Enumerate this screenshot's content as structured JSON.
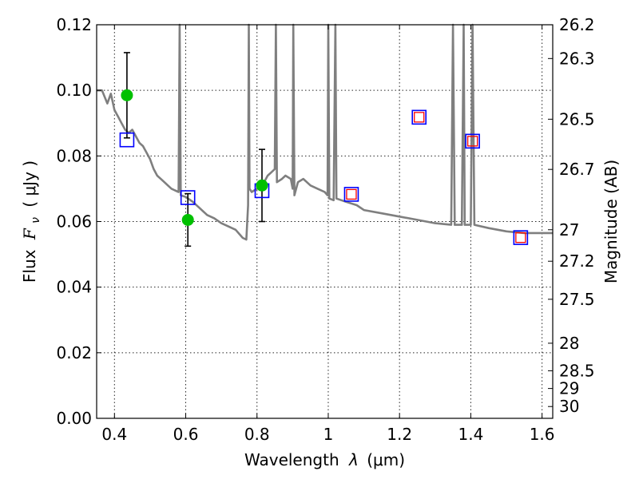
{
  "chart_data": {
    "type": "scatter",
    "xlabel_prefix": "Wavelength",
    "xlabel_symbol": "λ",
    "xlabel_unit": "(μm)",
    "ylabel_prefix": "Flux",
    "ylabel_symbol": "F",
    "ylabel_sub": "ν",
    "ylabel_unit": "( μJy )",
    "y2label": "Magnitude (AB)",
    "xlim": [
      0.35,
      1.63
    ],
    "ylim": [
      0.0,
      0.12
    ],
    "grid": true,
    "x_ticks": [
      0.4,
      0.6,
      0.8,
      1.0,
      1.2,
      1.4,
      1.6
    ],
    "x_tick_labels": [
      "0.4",
      "0.6",
      "0.8",
      "1",
      "1.2",
      "1.4",
      "1.6"
    ],
    "y_ticks": [
      0.0,
      0.02,
      0.04,
      0.06,
      0.08,
      0.1,
      0.12
    ],
    "y_tick_labels": [
      "0.00",
      "0.02",
      "0.04",
      "0.06",
      "0.08",
      "0.10",
      "0.12"
    ],
    "y2_ticks": [
      {
        "label": "26.2",
        "flux": 0.12
      },
      {
        "label": "26.3",
        "flux": 0.1097
      },
      {
        "label": "26.5",
        "flux": 0.0912
      },
      {
        "label": "26.7",
        "flux": 0.0759
      },
      {
        "label": "27",
        "flux": 0.0575
      },
      {
        "label": "27.2",
        "flux": 0.0479
      },
      {
        "label": "27.5",
        "flux": 0.0363
      },
      {
        "label": "28",
        "flux": 0.0229
      },
      {
        "label": "28.5",
        "flux": 0.0145
      },
      {
        "label": "29",
        "flux": 0.0091
      },
      {
        "label": "30",
        "flux": 0.0036
      }
    ],
    "colors": {
      "observed": "#00c000",
      "error_bar": "#000000",
      "model_box": "#0000ff",
      "predicted_box": "#ff0000",
      "sed_line": "#7f7f7f"
    },
    "observed_points": [
      {
        "x": 0.435,
        "y": 0.0985,
        "yerr": 0.013
      },
      {
        "x": 0.606,
        "y": 0.0605,
        "yerr": 0.008
      },
      {
        "x": 0.814,
        "y": 0.071,
        "yerr": 0.011
      }
    ],
    "model_points": [
      {
        "x": 0.435,
        "y": 0.0849
      },
      {
        "x": 0.606,
        "y": 0.0673
      },
      {
        "x": 0.814,
        "y": 0.0694
      }
    ],
    "predicted_points": [
      {
        "x": 1.065,
        "y": 0.0683
      },
      {
        "x": 1.255,
        "y": 0.0918
      },
      {
        "x": 1.405,
        "y": 0.0845
      },
      {
        "x": 1.54,
        "y": 0.0551
      }
    ],
    "sed_curve": [
      [
        0.35,
        0.1
      ],
      [
        0.365,
        0.1
      ],
      [
        0.38,
        0.096
      ],
      [
        0.39,
        0.099
      ],
      [
        0.4,
        0.094
      ],
      [
        0.41,
        0.092
      ],
      [
        0.42,
        0.09
      ],
      [
        0.43,
        0.088
      ],
      [
        0.44,
        0.087
      ],
      [
        0.45,
        0.088
      ],
      [
        0.46,
        0.086
      ],
      [
        0.47,
        0.084
      ],
      [
        0.48,
        0.083
      ],
      [
        0.49,
        0.081
      ],
      [
        0.5,
        0.079
      ],
      [
        0.51,
        0.076
      ],
      [
        0.52,
        0.074
      ],
      [
        0.53,
        0.073
      ],
      [
        0.54,
        0.072
      ],
      [
        0.55,
        0.071
      ],
      [
        0.56,
        0.07
      ],
      [
        0.57,
        0.0695
      ],
      [
        0.58,
        0.069
      ],
      [
        0.583,
        0.12
      ],
      [
        0.586,
        0.068
      ],
      [
        0.6,
        0.0675
      ],
      [
        0.62,
        0.066
      ],
      [
        0.64,
        0.064
      ],
      [
        0.66,
        0.062
      ],
      [
        0.68,
        0.061
      ],
      [
        0.7,
        0.0595
      ],
      [
        0.72,
        0.0585
      ],
      [
        0.74,
        0.0575
      ],
      [
        0.76,
        0.055
      ],
      [
        0.77,
        0.0545
      ],
      [
        0.775,
        0.065
      ],
      [
        0.777,
        0.12
      ],
      [
        0.779,
        0.07
      ],
      [
        0.785,
        0.069
      ],
      [
        0.8,
        0.07
      ],
      [
        0.81,
        0.072
      ],
      [
        0.82,
        0.072
      ],
      [
        0.83,
        0.074
      ],
      [
        0.84,
        0.075
      ],
      [
        0.85,
        0.076
      ],
      [
        0.853,
        0.12
      ],
      [
        0.856,
        0.072
      ],
      [
        0.87,
        0.073
      ],
      [
        0.88,
        0.074
      ],
      [
        0.895,
        0.073
      ],
      [
        0.9,
        0.07
      ],
      [
        0.902,
        0.12
      ],
      [
        0.905,
        0.068
      ],
      [
        0.915,
        0.072
      ],
      [
        0.93,
        0.073
      ],
      [
        0.95,
        0.071
      ],
      [
        0.97,
        0.07
      ],
      [
        0.99,
        0.069
      ],
      [
        0.998,
        0.068
      ],
      [
        1.0,
        0.12
      ],
      [
        1.003,
        0.067
      ],
      [
        1.015,
        0.0665
      ],
      [
        1.02,
        0.12
      ],
      [
        1.023,
        0.067
      ],
      [
        1.05,
        0.066
      ],
      [
        1.08,
        0.065
      ],
      [
        1.1,
        0.0635
      ],
      [
        1.15,
        0.0625
      ],
      [
        1.2,
        0.0615
      ],
      [
        1.25,
        0.0605
      ],
      [
        1.3,
        0.0595
      ],
      [
        1.345,
        0.059
      ],
      [
        1.35,
        0.12
      ],
      [
        1.355,
        0.059
      ],
      [
        1.375,
        0.059
      ],
      [
        1.38,
        0.12
      ],
      [
        1.383,
        0.059
      ],
      [
        1.4,
        0.059
      ],
      [
        1.405,
        0.12
      ],
      [
        1.41,
        0.059
      ],
      [
        1.45,
        0.058
      ],
      [
        1.5,
        0.057
      ],
      [
        1.55,
        0.0565
      ],
      [
        1.6,
        0.0565
      ],
      [
        1.63,
        0.0565
      ]
    ]
  }
}
